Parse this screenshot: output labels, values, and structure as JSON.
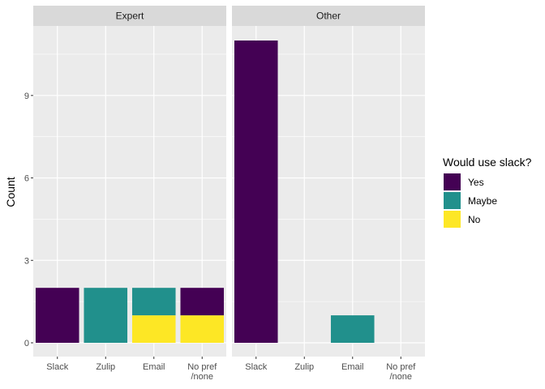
{
  "chart_data": {
    "type": "bar",
    "stacked": true,
    "ylabel": "Count",
    "ylim": [
      0,
      11.5
    ],
    "yticks": [
      0,
      3,
      6,
      9
    ],
    "categories": [
      "Slack",
      "Zulip",
      "Email",
      "No pref\n/none"
    ],
    "legend": {
      "title": "Would use slack?",
      "placement": "right",
      "entries": [
        {
          "name": "Yes",
          "color": "#440154"
        },
        {
          "name": "Maybe",
          "color": "#21908C"
        },
        {
          "name": "No",
          "color": "#FDE725"
        }
      ]
    },
    "panels": [
      {
        "title": "Expert",
        "series": [
          {
            "name": "Yes",
            "values": [
              2,
              0,
              0,
              1
            ]
          },
          {
            "name": "Maybe",
            "values": [
              0,
              2,
              1,
              0
            ]
          },
          {
            "name": "No",
            "values": [
              0,
              0,
              1,
              1
            ]
          }
        ]
      },
      {
        "title": "Other",
        "series": [
          {
            "name": "Yes",
            "values": [
              11,
              0,
              0,
              0
            ]
          },
          {
            "name": "Maybe",
            "values": [
              0,
              0,
              1,
              0
            ]
          },
          {
            "name": "No",
            "values": [
              0,
              0,
              0,
              0
            ]
          }
        ]
      }
    ],
    "grid": true
  }
}
